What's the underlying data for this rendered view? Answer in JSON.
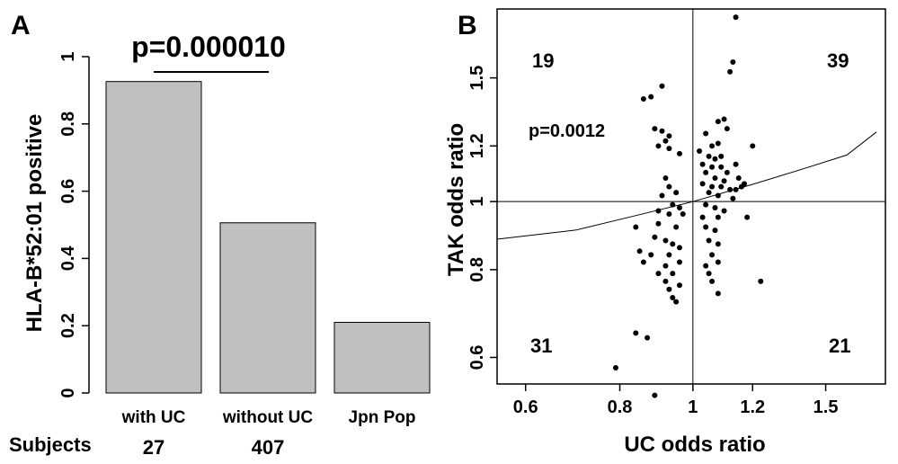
{
  "chart_data": [
    {
      "type": "bar",
      "panel": "A",
      "ylabel": "HLA-B*52:01 positive",
      "ylim": [
        0,
        1
      ],
      "yticks": [
        "0",
        "0.2",
        "0.4",
        "0.6",
        "0.8",
        "1"
      ],
      "ytick_values": [
        0,
        0.2,
        0.4,
        0.6,
        0.8,
        1.0
      ],
      "categories": [
        "with UC",
        "without UC",
        "Jpn Pop"
      ],
      "values": [
        0.926,
        0.506,
        0.21
      ],
      "bar_color": "#c0c0c0",
      "annotation": "p=0.000010",
      "subjects_label": "Subjects",
      "subjects_counts": [
        "27",
        "407"
      ]
    },
    {
      "type": "scatter",
      "panel": "B",
      "xlabel": "UC odds ratio",
      "ylabel": "TAK odds ratio",
      "log_scale": true,
      "xlim": [
        0.55,
        1.8
      ],
      "ylim": [
        0.55,
        1.88
      ],
      "xticks": [
        "0.6",
        "0.8",
        "1",
        "1.2",
        "1.5"
      ],
      "xtick_values": [
        0.6,
        0.8,
        1.0,
        1.2,
        1.5
      ],
      "yticks": [
        "0.6",
        "0.8",
        "1",
        "1.2",
        "1.5"
      ],
      "ytick_values": [
        0.6,
        0.8,
        1.0,
        1.2,
        1.5
      ],
      "reference_lines": {
        "x": 1,
        "y": 1
      },
      "quadrant_counts": {
        "top_left": "19",
        "top_right": "39",
        "bottom_left": "31",
        "bottom_right": "21"
      },
      "annotation": "p=0.0012",
      "trend_line": {
        "x": [
          0.55,
          0.7,
          0.85,
          1.0,
          1.2,
          1.4,
          1.6,
          1.8
        ],
        "y": [
          0.884,
          0.911,
          0.958,
          1.0,
          1.058,
          1.113,
          1.165,
          1.256
        ]
      },
      "points": [
        [
          1.14,
          1.83
        ],
        [
          1.13,
          1.58
        ],
        [
          1.12,
          1.53
        ],
        [
          0.91,
          1.46
        ],
        [
          0.88,
          1.41
        ],
        [
          0.86,
          1.4
        ],
        [
          0.89,
          1.27
        ],
        [
          0.91,
          1.26
        ],
        [
          0.93,
          1.24
        ],
        [
          1.04,
          1.25
        ],
        [
          1.08,
          1.3
        ],
        [
          1.1,
          1.31
        ],
        [
          1.11,
          1.27
        ],
        [
          0.92,
          1.22
        ],
        [
          0.9,
          1.2
        ],
        [
          0.93,
          1.19
        ],
        [
          0.96,
          1.17
        ],
        [
          1.02,
          1.18
        ],
        [
          1.06,
          1.2
        ],
        [
          1.08,
          1.21
        ],
        [
          1.05,
          1.16
        ],
        [
          1.07,
          1.15
        ],
        [
          1.09,
          1.16
        ],
        [
          1.03,
          1.13
        ],
        [
          1.06,
          1.12
        ],
        [
          1.09,
          1.12
        ],
        [
          1.11,
          1.1
        ],
        [
          1.14,
          1.13
        ],
        [
          1.2,
          1.2
        ],
        [
          1.04,
          1.1
        ],
        [
          1.07,
          1.08
        ],
        [
          1.1,
          1.07
        ],
        [
          1.15,
          1.08
        ],
        [
          1.17,
          1.06
        ],
        [
          1.03,
          1.06
        ],
        [
          1.06,
          1.05
        ],
        [
          1.09,
          1.05
        ],
        [
          1.12,
          1.04
        ],
        [
          1.14,
          1.04
        ],
        [
          1.16,
          1.05
        ],
        [
          0.92,
          1.08
        ],
        [
          0.93,
          1.05
        ],
        [
          0.95,
          1.03
        ],
        [
          1.05,
          1.03
        ],
        [
          1.08,
          1.02
        ],
        [
          1.13,
          1.01
        ],
        [
          0.91,
          1.02
        ],
        [
          0.94,
          0.99
        ],
        [
          0.96,
          0.98
        ],
        [
          1.04,
          0.99
        ],
        [
          1.07,
          0.98
        ],
        [
          1.1,
          0.97
        ],
        [
          0.9,
          0.97
        ],
        [
          0.93,
          0.96
        ],
        [
          0.97,
          0.96
        ],
        [
          1.03,
          0.95
        ],
        [
          1.08,
          0.95
        ],
        [
          1.18,
          0.95
        ],
        [
          0.9,
          0.93
        ],
        [
          0.95,
          0.92
        ],
        [
          1.04,
          0.92
        ],
        [
          1.07,
          0.91
        ],
        [
          0.84,
          0.92
        ],
        [
          0.89,
          0.89
        ],
        [
          0.92,
          0.88
        ],
        [
          0.94,
          0.87
        ],
        [
          0.96,
          0.86
        ],
        [
          1.05,
          0.88
        ],
        [
          1.08,
          0.87
        ],
        [
          0.85,
          0.85
        ],
        [
          0.88,
          0.84
        ],
        [
          0.93,
          0.84
        ],
        [
          1.06,
          0.84
        ],
        [
          0.86,
          0.82
        ],
        [
          0.92,
          0.81
        ],
        [
          0.96,
          0.82
        ],
        [
          1.04,
          0.81
        ],
        [
          1.08,
          0.82
        ],
        [
          0.9,
          0.79
        ],
        [
          0.94,
          0.79
        ],
        [
          1.05,
          0.79
        ],
        [
          0.92,
          0.77
        ],
        [
          1.06,
          0.77
        ],
        [
          0.93,
          0.75
        ],
        [
          0.96,
          0.76
        ],
        [
          1.23,
          0.77
        ],
        [
          0.94,
          0.73
        ],
        [
          0.95,
          0.72
        ],
        [
          1.08,
          0.74
        ],
        [
          0.84,
          0.65
        ],
        [
          0.87,
          0.64
        ],
        [
          0.79,
          0.58
        ],
        [
          0.89,
          0.53
        ]
      ]
    }
  ]
}
